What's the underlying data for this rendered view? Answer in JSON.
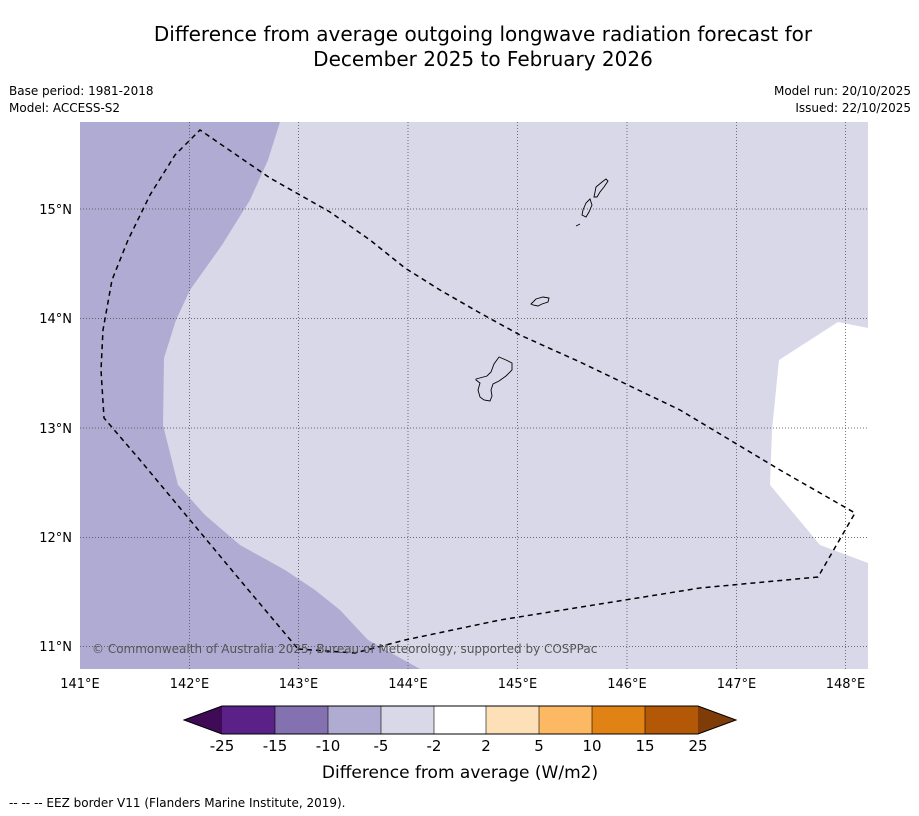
{
  "title_line1": "Difference from average outgoing longwave radiation forecast for",
  "title_line2": "December 2025 to February 2026",
  "base_period": "Base period: 1981-2018",
  "model": "Model: ACCESS-S2",
  "model_run": "Model run: 20/10/2025",
  "issued": "Issued: 22/10/2025",
  "copyright": "© Commonwealth of Australia 2025, Bureau of Meteorology, supported by COSPPac",
  "lon_labels": [
    "141°E",
    "142°E",
    "143°E",
    "144°E",
    "145°E",
    "146°E",
    "147°E",
    "148°E"
  ],
  "lat_labels": [
    "15°N",
    "14°N",
    "13°N",
    "12°N",
    "11°N"
  ],
  "colorbar": {
    "label": "Difference from average (W/m2)",
    "ticks": [
      "-25",
      "-15",
      "-10",
      "-5",
      "-2",
      "2",
      "5",
      "10",
      "15",
      "25"
    ],
    "colors": [
      "#3f0a56",
      "#5a2189",
      "#8371b0",
      "#b0abd2",
      "#d8d8e9",
      "#ffffff",
      "#fde0b8",
      "#fdb863",
      "#e08214",
      "#b35806",
      "#7f3b08"
    ]
  },
  "footnote": "--  --  -- EEZ border V11 (Flanders Marine Institute, 2019).",
  "colors": {
    "light_purple": "#d8d8e9",
    "mid_purple": "#b0abd2",
    "white": "#ffffff"
  }
}
